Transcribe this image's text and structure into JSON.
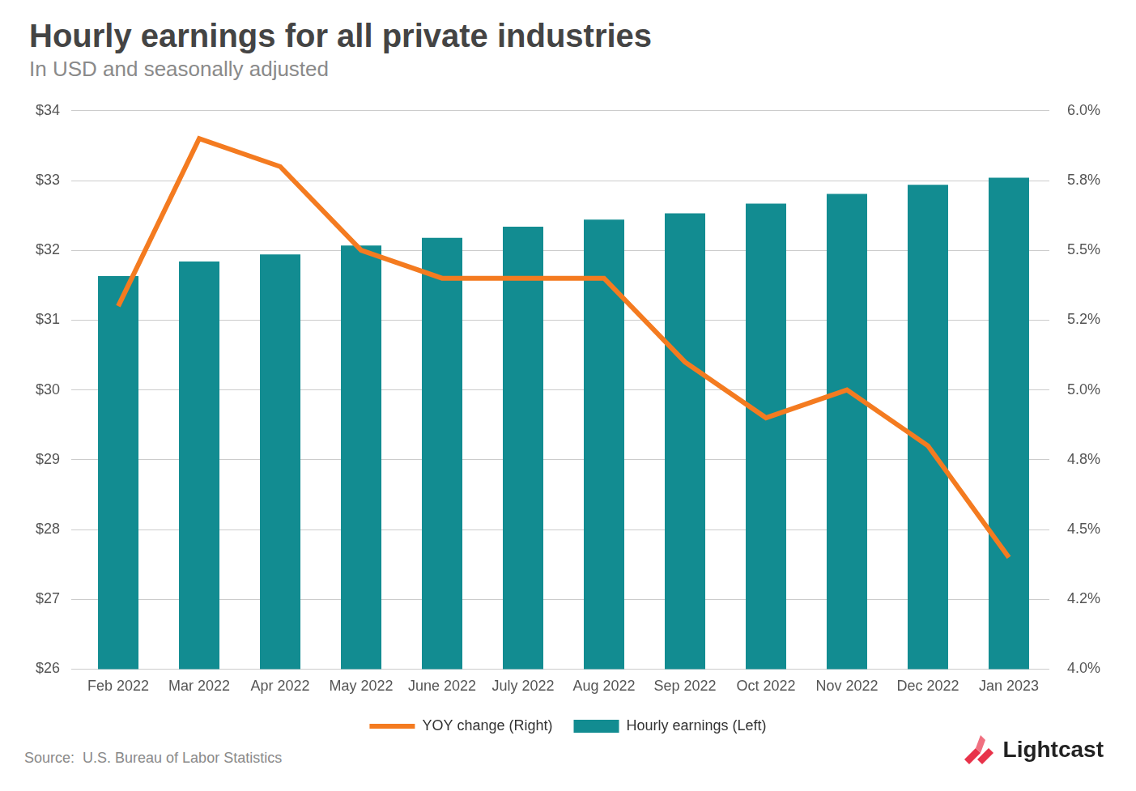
{
  "chart_data": {
    "type": "bar",
    "title": "Hourly earnings for all private industries",
    "subtitle": "In USD and seasonally adjusted",
    "source": "Source:  U.S. Bureau of Labor Statistics",
    "brand": "Lightcast",
    "categories": [
      "Feb 2022",
      "Mar 2022",
      "Apr 2022",
      "May 2022",
      "June 2022",
      "July 2022",
      "Aug 2022",
      "Sep 2022",
      "Oct 2022",
      "Nov 2022",
      "Dec 2022",
      "Jan 2023"
    ],
    "series": [
      {
        "name": "Hourly earnings (Left)",
        "type": "bar",
        "color": "#128c91",
        "values": [
          31.63,
          31.84,
          31.94,
          32.07,
          32.18,
          32.34,
          32.44,
          32.53,
          32.67,
          32.81,
          32.94,
          33.04
        ]
      },
      {
        "name": "YOY change (Right)",
        "type": "line",
        "color": "#f47b20",
        "axis": "y2",
        "values": [
          5.3,
          5.9,
          5.8,
          5.5,
          5.4,
          5.4,
          5.4,
          5.1,
          4.9,
          5.0,
          4.8,
          4.4
        ]
      }
    ],
    "ylim": [
      26,
      34
    ],
    "yticks": [
      {
        "value": 26,
        "label": "$26"
      },
      {
        "value": 27,
        "label": "$27"
      },
      {
        "value": 28,
        "label": "$28"
      },
      {
        "value": 29,
        "label": "$29"
      },
      {
        "value": 30,
        "label": "$30"
      },
      {
        "value": 31,
        "label": "$31"
      },
      {
        "value": 32,
        "label": "$32"
      },
      {
        "value": 33,
        "label": "$33"
      },
      {
        "value": 34,
        "label": "$34"
      }
    ],
    "y2lim": [
      4.0,
      6.0
    ],
    "y2ticks": [
      {
        "value": 4.0,
        "label": "4.0%"
      },
      {
        "value": 4.25,
        "label": "4.2%"
      },
      {
        "value": 4.5,
        "label": "4.5%"
      },
      {
        "value": 4.75,
        "label": "4.8%"
      },
      {
        "value": 5.0,
        "label": "5.0%"
      },
      {
        "value": 5.25,
        "label": "5.2%"
      },
      {
        "value": 5.5,
        "label": "5.5%"
      },
      {
        "value": 5.75,
        "label": "5.8%"
      },
      {
        "value": 6.0,
        "label": "6.0%"
      }
    ],
    "grid": true,
    "legend": "bottom"
  }
}
